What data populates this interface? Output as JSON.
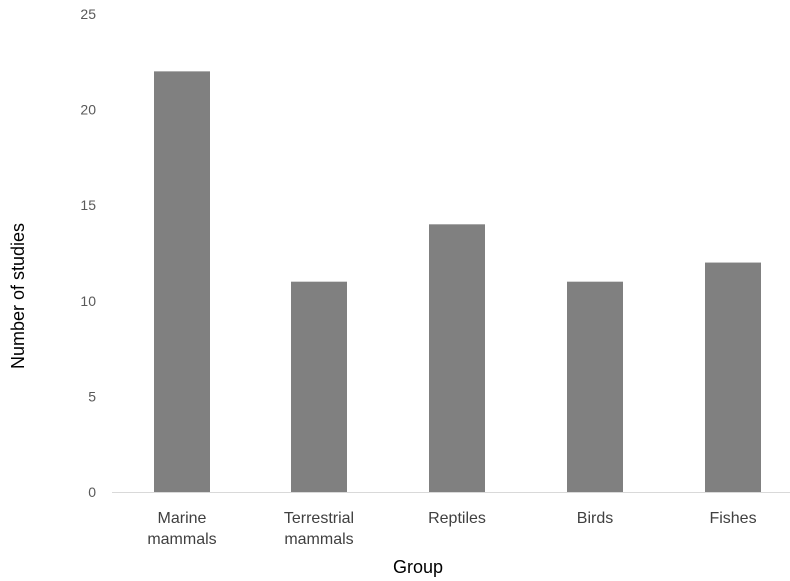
{
  "chart_data": {
    "type": "bar",
    "categories": [
      [
        "Marine",
        "mammals"
      ],
      [
        "Terrestrial",
        "mammals"
      ],
      [
        "Reptiles"
      ],
      [
        "Birds"
      ],
      [
        "Fishes"
      ]
    ],
    "values": [
      22,
      11,
      14,
      11,
      12
    ],
    "yticks": [
      "0",
      "5",
      "10",
      "15",
      "20",
      "25"
    ],
    "ylim": [
      0,
      25
    ],
    "xlabel": "Group",
    "ylabel": "Number of studies",
    "grid": false,
    "legend": "none",
    "bar_color": "#808080",
    "axis_color": "#d9d9d9"
  }
}
